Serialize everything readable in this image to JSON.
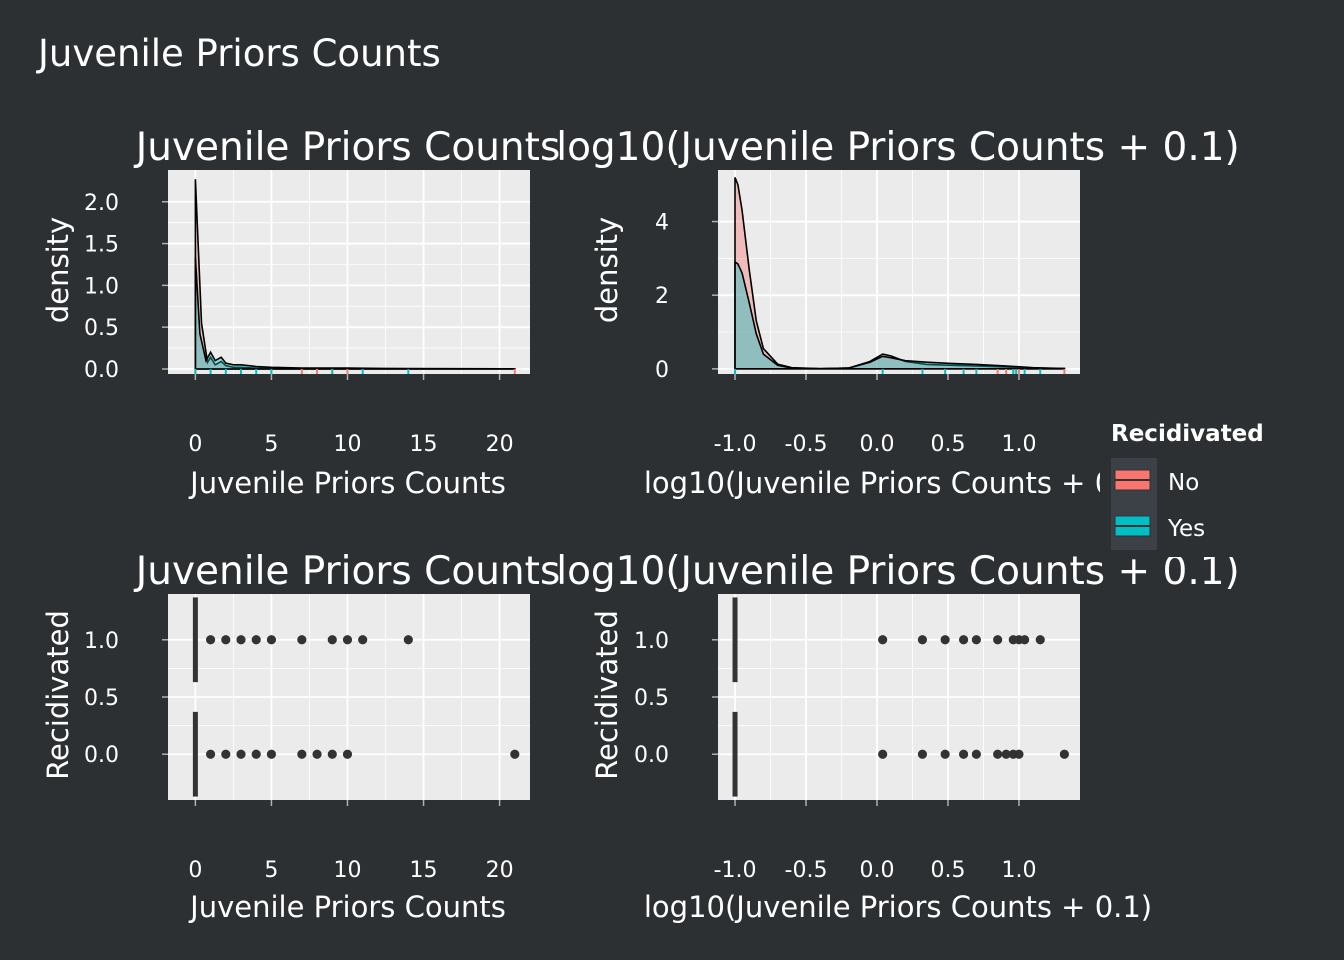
{
  "figure_title": "Juvenile Priors Counts",
  "legend": {
    "title": "Recidivated",
    "entries": [
      {
        "label": "No",
        "color": "#f8766d"
      },
      {
        "label": "Yes",
        "color": "#00bfc4"
      }
    ]
  },
  "colors": {
    "background": "#2d3032",
    "panel": "#ebebeb",
    "grid": "#ffffff",
    "text": "#ffffff",
    "points": "#333333"
  },
  "chart_data": [
    {
      "type": "area",
      "title": "Juvenile Priors Counts",
      "xlabel": "Juvenile Priors Counts",
      "ylabel": "density",
      "xlim": [
        -1.8,
        22.0
      ],
      "ylim": [
        -0.06,
        2.38
      ],
      "xticks": [
        0,
        5,
        10,
        15,
        20
      ],
      "yticks": [
        0.0,
        0.5,
        1.0,
        1.5,
        2.0
      ],
      "series": [
        {
          "name": "No",
          "x": [
            0,
            0.4,
            0.8,
            1,
            1.3,
            1.7,
            2,
            2.5,
            3,
            4,
            5,
            6,
            8,
            10,
            15,
            21
          ],
          "y": [
            2.27,
            0.55,
            0.08,
            0.14,
            0.05,
            0.09,
            0.04,
            0.02,
            0.02,
            0.01,
            0.008,
            0.005,
            0.004,
            0.003,
            0.002,
            0.002
          ]
        },
        {
          "name": "Yes",
          "x": [
            0,
            0.3,
            0.7,
            1,
            1.3,
            1.7,
            2,
            2.5,
            3,
            4,
            5,
            7,
            10,
            14,
            21
          ],
          "y": [
            1.33,
            0.42,
            0.1,
            0.2,
            0.1,
            0.14,
            0.07,
            0.05,
            0.05,
            0.03,
            0.02,
            0.01,
            0.01,
            0.005,
            0.002
          ]
        }
      ],
      "rug": {
        "No": [
          0,
          7,
          8,
          9,
          10,
          21
        ],
        "Yes": [
          0,
          1,
          2,
          3,
          4,
          5,
          9,
          11,
          14
        ]
      }
    },
    {
      "type": "area",
      "title": "log10(Juvenile Priors Counts + 0.1)",
      "xlabel": "log10(Juvenile Priors Counts + 0.1)",
      "ylabel": "density",
      "xlim": [
        -1.12,
        1.43
      ],
      "ylim": [
        -0.14,
        5.4
      ],
      "xticks": [
        -1.0,
        -0.5,
        0.0,
        0.5,
        1.0
      ],
      "yticks": [
        0,
        2,
        4
      ],
      "series": [
        {
          "name": "No",
          "x": [
            -1.0,
            -0.98,
            -0.95,
            -0.9,
            -0.85,
            -0.8,
            -0.7,
            -0.6,
            -0.4,
            -0.2,
            -0.05,
            0.04,
            0.1,
            0.2,
            0.35,
            0.5,
            0.7,
            0.9,
            1.1,
            1.32
          ],
          "y": [
            5.2,
            5.0,
            4.3,
            2.7,
            1.3,
            0.55,
            0.13,
            0.03,
            0.005,
            0.02,
            0.2,
            0.4,
            0.35,
            0.2,
            0.12,
            0.1,
            0.08,
            0.05,
            0.02,
            0.01
          ]
        },
        {
          "name": "Yes",
          "x": [
            -1.0,
            -0.98,
            -0.95,
            -0.9,
            -0.85,
            -0.8,
            -0.7,
            -0.6,
            -0.4,
            -0.2,
            -0.05,
            0.04,
            0.1,
            0.2,
            0.35,
            0.5,
            0.7,
            0.9,
            1.1,
            1.32
          ],
          "y": [
            2.9,
            2.85,
            2.6,
            1.8,
            0.95,
            0.4,
            0.1,
            0.02,
            0.005,
            0.02,
            0.18,
            0.34,
            0.3,
            0.22,
            0.18,
            0.15,
            0.12,
            0.08,
            0.03,
            0.01
          ]
        }
      ],
      "rug": {
        "No": [
          -1.0,
          0.85,
          0.91,
          0.96,
          1.0,
          1.32
        ],
        "Yes": [
          -1.0,
          0.04,
          0.32,
          0.48,
          0.61,
          0.7,
          0.96,
          0.98,
          1.04,
          1.15
        ]
      }
    },
    {
      "type": "scatter",
      "title": "Juvenile Priors Counts",
      "xlabel": "Juvenile Priors Counts",
      "ylabel": "Recidivated",
      "xlim": [
        -1.8,
        22.0
      ],
      "ylim": [
        -0.4,
        1.4
      ],
      "xticks": [
        0,
        5,
        10,
        15,
        20
      ],
      "yticks": [
        0.0,
        0.5,
        1.0
      ],
      "boxes": [
        {
          "y": 1,
          "x_from": 0,
          "x_to": 0
        },
        {
          "y": 0,
          "x_from": 0,
          "x_to": 0
        }
      ],
      "points": [
        {
          "x": 1,
          "y": 1
        },
        {
          "x": 2,
          "y": 1
        },
        {
          "x": 3,
          "y": 1
        },
        {
          "x": 4,
          "y": 1
        },
        {
          "x": 5,
          "y": 1
        },
        {
          "x": 7,
          "y": 1
        },
        {
          "x": 9,
          "y": 1
        },
        {
          "x": 10,
          "y": 1
        },
        {
          "x": 11,
          "y": 1
        },
        {
          "x": 14,
          "y": 1
        },
        {
          "x": 1,
          "y": 0
        },
        {
          "x": 2,
          "y": 0
        },
        {
          "x": 3,
          "y": 0
        },
        {
          "x": 4,
          "y": 0
        },
        {
          "x": 5,
          "y": 0
        },
        {
          "x": 7,
          "y": 0
        },
        {
          "x": 8,
          "y": 0
        },
        {
          "x": 9,
          "y": 0
        },
        {
          "x": 10,
          "y": 0
        },
        {
          "x": 21,
          "y": 0
        }
      ]
    },
    {
      "type": "scatter",
      "title": "log10(Juvenile Priors Counts + 0.1)",
      "xlabel": "log10(Juvenile Priors Counts + 0.1)",
      "ylabel": "Recidivated",
      "xlim": [
        -1.12,
        1.43
      ],
      "ylim": [
        -0.4,
        1.4
      ],
      "xticks": [
        -1.0,
        -0.5,
        0.0,
        0.5,
        1.0
      ],
      "yticks": [
        0.0,
        0.5,
        1.0
      ],
      "boxes": [
        {
          "y": 1,
          "x_from": -1.0,
          "x_to": -1.0
        },
        {
          "y": 0,
          "x_from": -1.0,
          "x_to": -1.0
        }
      ],
      "points": [
        {
          "x": 0.04,
          "y": 1
        },
        {
          "x": 0.32,
          "y": 1
        },
        {
          "x": 0.48,
          "y": 1
        },
        {
          "x": 0.61,
          "y": 1
        },
        {
          "x": 0.7,
          "y": 1
        },
        {
          "x": 0.85,
          "y": 1
        },
        {
          "x": 0.96,
          "y": 1
        },
        {
          "x": 1.0,
          "y": 1
        },
        {
          "x": 1.04,
          "y": 1
        },
        {
          "x": 1.15,
          "y": 1
        },
        {
          "x": 0.04,
          "y": 0
        },
        {
          "x": 0.32,
          "y": 0
        },
        {
          "x": 0.48,
          "y": 0
        },
        {
          "x": 0.61,
          "y": 0
        },
        {
          "x": 0.7,
          "y": 0
        },
        {
          "x": 0.85,
          "y": 0
        },
        {
          "x": 0.91,
          "y": 0
        },
        {
          "x": 0.96,
          "y": 0
        },
        {
          "x": 1.0,
          "y": 0
        },
        {
          "x": 1.32,
          "y": 0
        }
      ]
    }
  ]
}
